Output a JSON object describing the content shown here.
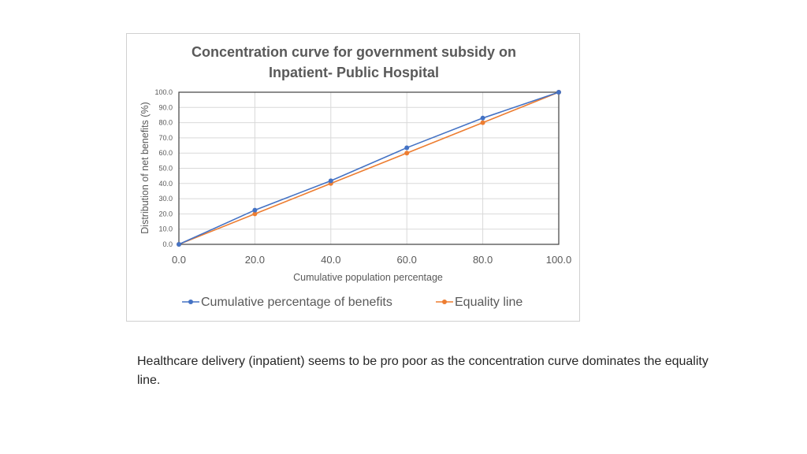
{
  "chart_data": {
    "type": "line",
    "title_lines": [
      "Concentration curve for government subsidy on",
      "Inpatient- Public Hospital"
    ],
    "xlabel": "Cumulative population percentage",
    "ylabel": "Distribution of net benefits (%)",
    "x": [
      0,
      20,
      40,
      60,
      80,
      100
    ],
    "xlim": [
      0,
      100
    ],
    "ylim": [
      0,
      100
    ],
    "x_ticks": [
      "0.0",
      "20.0",
      "40.0",
      "60.0",
      "80.0",
      "100.0"
    ],
    "y_ticks": [
      "0.0",
      "10.0",
      "20.0",
      "30.0",
      "40.0",
      "50.0",
      "60.0",
      "70.0",
      "80.0",
      "90.0",
      "100.0"
    ],
    "grid": true,
    "legend_position": "bottom",
    "series": [
      {
        "name": "Cumulative percentage of benefits",
        "color": "#4472C4",
        "values": [
          0,
          22.5,
          41.8,
          63.5,
          83.0,
          100
        ]
      },
      {
        "name": "Equality line",
        "color": "#ED7D31",
        "values": [
          0,
          20,
          40,
          60,
          80,
          100
        ]
      }
    ]
  },
  "note": "Healthcare delivery (inpatient) seems to be pro poor as the concentration curve dominates the equality line."
}
